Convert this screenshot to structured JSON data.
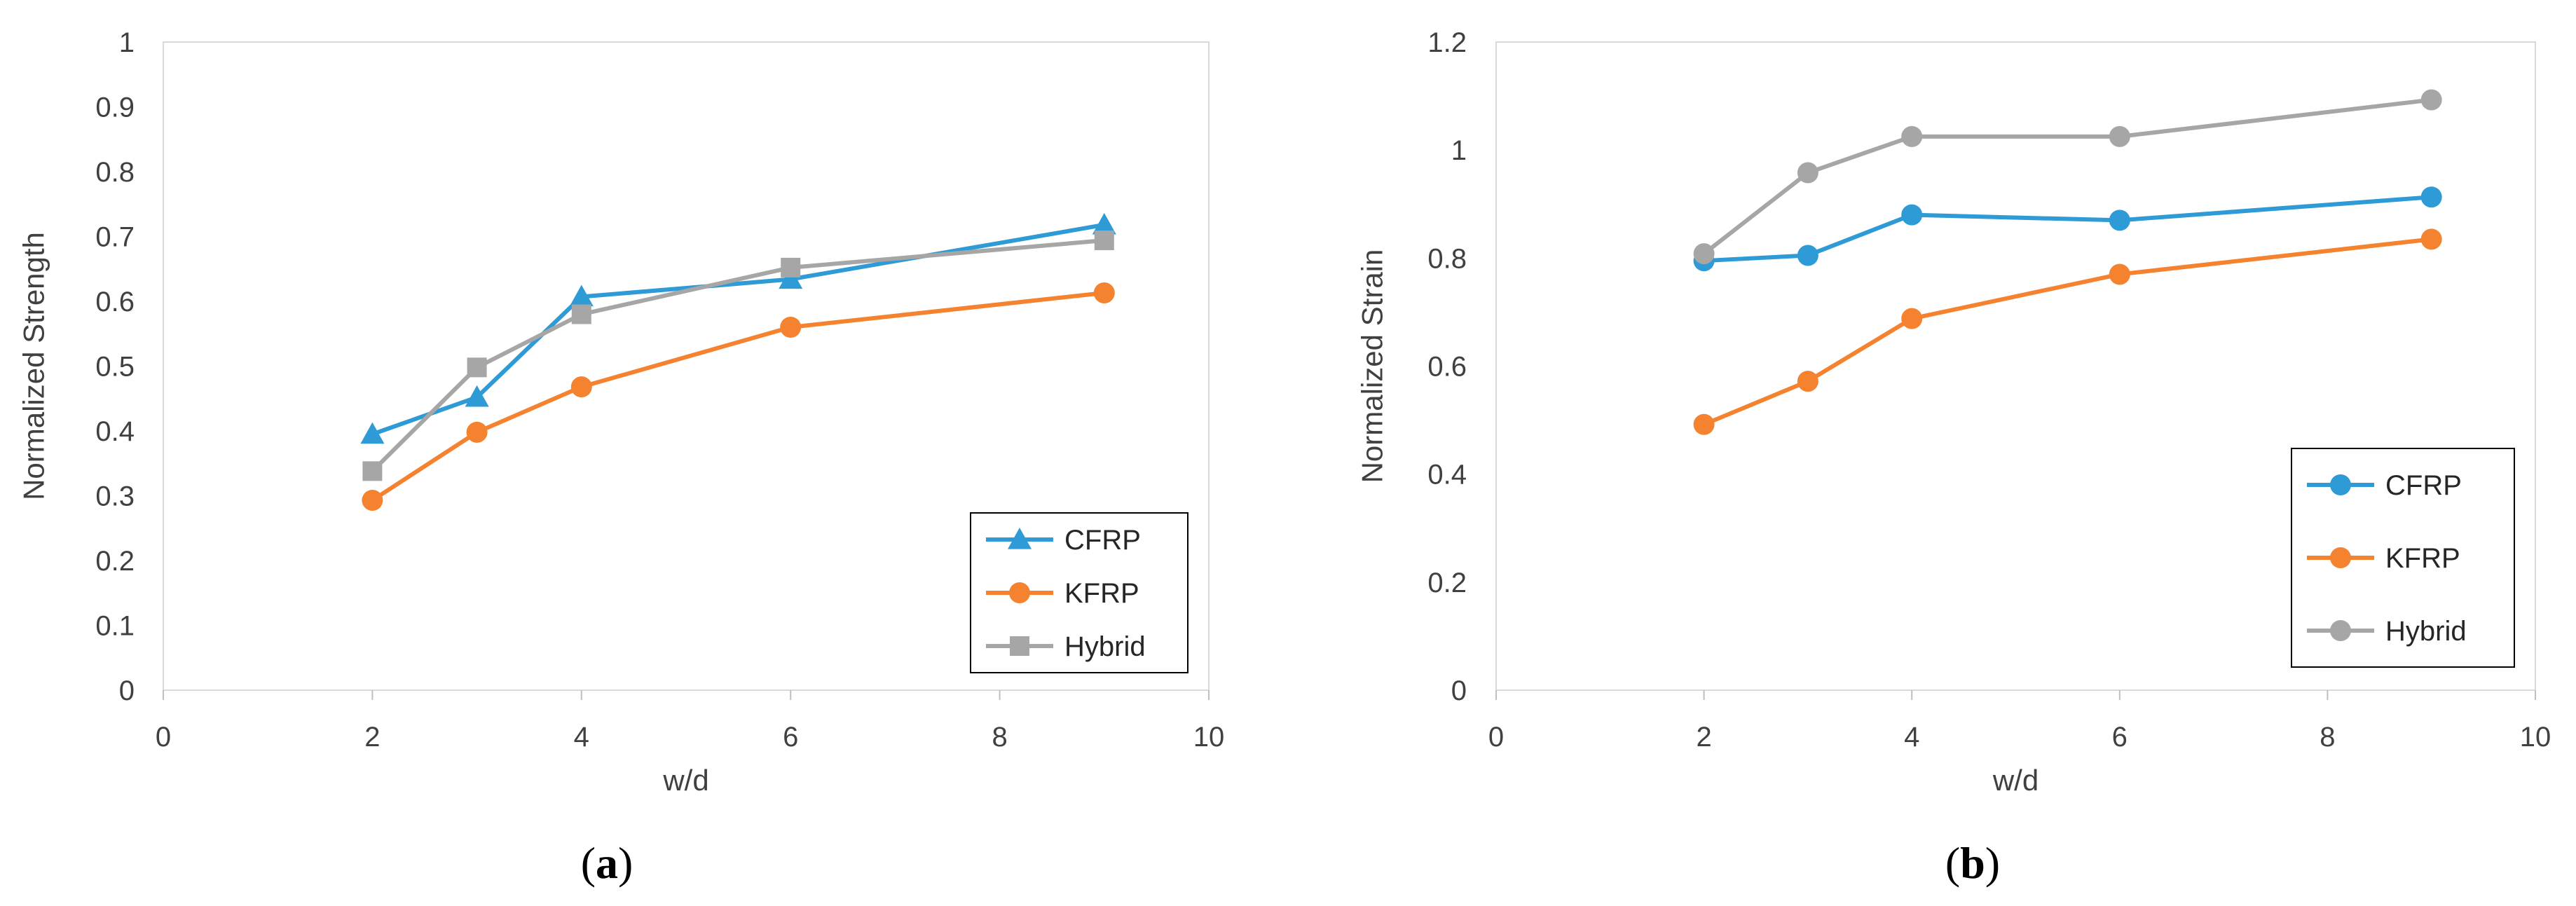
{
  "chart_data": [
    {
      "type": "line",
      "panel": "a",
      "panel_label": "a",
      "title": "",
      "xlabel": "w/d",
      "ylabel": "Normalized Strength",
      "xlim": [
        0,
        10
      ],
      "ylim": [
        0,
        1
      ],
      "xticks": [
        0,
        2,
        4,
        6,
        8,
        10
      ],
      "xtick_labels": [
        "0",
        "2",
        "4",
        "6",
        "8",
        "10"
      ],
      "yticks": [
        0,
        0.1,
        0.2,
        0.3,
        0.4,
        0.5,
        0.6,
        0.7,
        0.8,
        0.9,
        1
      ],
      "ytick_labels": [
        "0",
        "0.1",
        "0.2",
        "0.3",
        "0.4",
        "0.5",
        "0.6",
        "0.7",
        "0.8",
        "0.9",
        "1"
      ],
      "grid": false,
      "legend_position": "bottom-right",
      "x": [
        2,
        3,
        4,
        6,
        9
      ],
      "series": [
        {
          "name": "CFRP",
          "color": "#2E9BD6",
          "marker": "triangle",
          "values": [
            0.395,
            0.452,
            0.607,
            0.634,
            0.718
          ]
        },
        {
          "name": "KFRP",
          "color": "#F5822F",
          "marker": "circle",
          "values": [
            0.293,
            0.398,
            0.468,
            0.56,
            0.613
          ]
        },
        {
          "name": "Hybrid",
          "color": "#A6A6A6",
          "marker": "square",
          "values": [
            0.338,
            0.498,
            0.58,
            0.652,
            0.694
          ]
        }
      ]
    },
    {
      "type": "line",
      "panel": "b",
      "panel_label": "b",
      "title": "",
      "xlabel": "w/d",
      "ylabel": "Normalized Strain",
      "xlim": [
        0,
        10
      ],
      "ylim": [
        0,
        1.2
      ],
      "xticks": [
        0,
        2,
        4,
        6,
        8,
        10
      ],
      "xtick_labels": [
        "0",
        "2",
        "4",
        "6",
        "8",
        "10"
      ],
      "yticks": [
        0,
        0.2,
        0.4,
        0.6,
        0.8,
        1,
        1.2
      ],
      "ytick_labels": [
        "0",
        "0.2",
        "0.4",
        "0.6",
        "0.8",
        "1",
        "1.2"
      ],
      "grid": false,
      "legend_position": "bottom-right",
      "x": [
        2,
        3,
        4,
        6,
        9
      ],
      "series": [
        {
          "name": "CFRP",
          "color": "#2E9BD6",
          "marker": "circle",
          "values": [
            0.795,
            0.805,
            0.88,
            0.87,
            0.913
          ]
        },
        {
          "name": "KFRP",
          "color": "#F5822F",
          "marker": "circle",
          "values": [
            0.492,
            0.572,
            0.688,
            0.77,
            0.835
          ]
        },
        {
          "name": "Hybrid",
          "color": "#A6A6A6",
          "marker": "circle",
          "values": [
            0.808,
            0.958,
            1.025,
            1.025,
            1.093
          ]
        }
      ]
    }
  ]
}
